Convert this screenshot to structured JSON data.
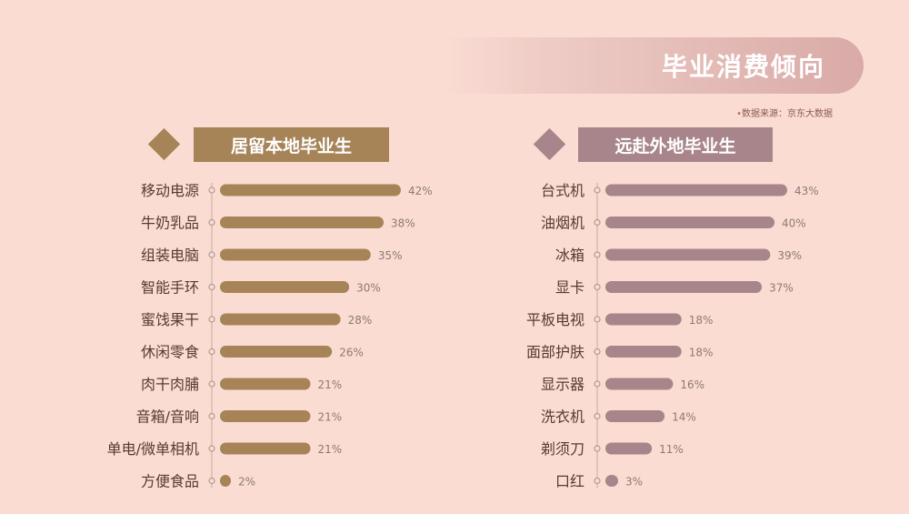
{
  "title": "毕业消费倾向",
  "source": "数据来源：京东大数据",
  "source_marker": "•",
  "colors": {
    "background": "#fadcd3",
    "local": "#a68458",
    "remote": "#a8858a",
    "text": "#5a3a30",
    "value_text": "#8e7a72"
  },
  "chart_data": [
    {
      "type": "bar",
      "title": "居留本地毕业生",
      "orientation": "horizontal",
      "categories": [
        "移动电源",
        "牛奶乳品",
        "组装电脑",
        "智能手环",
        "蜜饯果干",
        "休闲零食",
        "肉干肉脯",
        "音箱/音响",
        "单电/微单相机",
        "方便食品"
      ],
      "values": [
        42,
        38,
        35,
        30,
        28,
        26,
        21,
        21,
        21,
        2
      ],
      "value_labels": [
        "42%",
        "38%",
        "35%",
        "30%",
        "28%",
        "26%",
        "21%",
        "21%",
        "21%",
        "2%"
      ],
      "unit": "%",
      "xlim": [
        0,
        42
      ]
    },
    {
      "type": "bar",
      "title": "远赴外地毕业生",
      "orientation": "horizontal",
      "categories": [
        "台式机",
        "油烟机",
        "冰箱",
        "显卡",
        "平板电视",
        "面部护肤",
        "显示器",
        "洗衣机",
        "剃须刀",
        "口红"
      ],
      "values": [
        43,
        40,
        39,
        37,
        18,
        18,
        16,
        14,
        11,
        3
      ],
      "value_labels": [
        "43%",
        "40%",
        "39%",
        "37%",
        "18%",
        "18%",
        "16%",
        "14%",
        "11%",
        "3%"
      ],
      "unit": "%",
      "xlim": [
        0,
        43
      ]
    }
  ]
}
